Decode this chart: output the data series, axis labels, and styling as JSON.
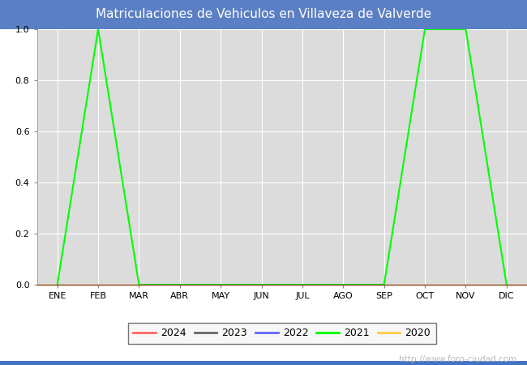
{
  "title": "Matriculaciones de Vehiculos en Villaveza de Valverde",
  "title_bg_color": "#5b7fc4",
  "title_text_color": "#ffffff",
  "plot_bg_color": "#dcdcdc",
  "fig_bg_color": "#ffffff",
  "months": [
    "ENE",
    "FEB",
    "MAR",
    "ABR",
    "MAY",
    "JUN",
    "JUL",
    "AGO",
    "SEP",
    "OCT",
    "NOV",
    "DIC"
  ],
  "ylim": [
    0.0,
    1.0
  ],
  "yticks": [
    0.0,
    0.2,
    0.4,
    0.6,
    0.8,
    1.0
  ],
  "series": {
    "2024": {
      "color": "#ff6666",
      "data": [
        null,
        null,
        null,
        null,
        null,
        null,
        null,
        null,
        null,
        null,
        null,
        null
      ]
    },
    "2023": {
      "color": "#666666",
      "data": [
        null,
        null,
        null,
        null,
        null,
        null,
        null,
        null,
        null,
        null,
        null,
        null
      ]
    },
    "2022": {
      "color": "#6666ff",
      "data": [
        null,
        null,
        null,
        null,
        null,
        null,
        null,
        null,
        null,
        null,
        null,
        null
      ]
    },
    "2021": {
      "color": "#00ff00",
      "data": [
        0.0,
        1.0,
        0.0,
        0.0,
        0.0,
        0.0,
        0.0,
        0.0,
        0.0,
        1.0,
        1.0,
        0.0
      ]
    },
    "2020": {
      "color": "#ffcc44",
      "data": [
        null,
        null,
        null,
        null,
        null,
        null,
        null,
        null,
        null,
        null,
        null,
        null
      ]
    }
  },
  "legend_order": [
    "2024",
    "2023",
    "2022",
    "2021",
    "2020"
  ],
  "watermark": "http://www.foro-ciudad.com",
  "watermark_color": "#bbbbbb",
  "grid_color": "#ffffff",
  "bottom_border_color": "#8B4513"
}
